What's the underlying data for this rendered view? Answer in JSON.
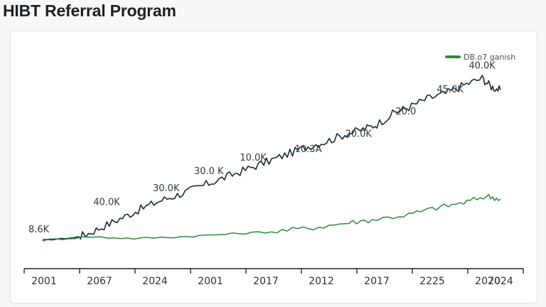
{
  "page": {
    "title": "HIBT Referral Program"
  },
  "chart_data": {
    "type": "line",
    "title": "HIBT Referral Program",
    "xlabel": "",
    "ylabel": "",
    "x_tick_labels": [
      "2001",
      "2067",
      "2024",
      "2001",
      "2017",
      "2012",
      "2017",
      "2225",
      "2070",
      "2024"
    ],
    "legend": {
      "position": "top-right",
      "entries": [
        {
          "label": "DB.o7 ganish",
          "color": "#2e8b3e"
        }
      ]
    },
    "grid": false,
    "ylim": [
      0,
      100
    ],
    "series": [
      {
        "color": "#1f2a36",
        "points": [
          [
            0.0,
            5.0
          ],
          [
            0.07,
            6.5
          ],
          [
            0.1,
            9.0
          ],
          [
            0.14,
            14.0
          ],
          [
            0.18,
            19.0
          ],
          [
            0.22,
            24.0
          ],
          [
            0.26,
            28.5
          ],
          [
            0.3,
            32.0
          ],
          [
            0.34,
            36.0
          ],
          [
            0.38,
            40.0
          ],
          [
            0.42,
            44.0
          ],
          [
            0.46,
            48.0
          ],
          [
            0.5,
            52.0
          ],
          [
            0.54,
            56.0
          ],
          [
            0.58,
            60.0
          ],
          [
            0.62,
            63.0
          ],
          [
            0.66,
            67.0
          ],
          [
            0.7,
            70.0
          ],
          [
            0.73,
            73.0
          ],
          [
            0.77,
            80.0
          ],
          [
            0.8,
            83.0
          ],
          [
            0.84,
            88.0
          ],
          [
            0.88,
            91.0
          ],
          [
            0.92,
            96.0
          ],
          [
            0.96,
            100.0
          ],
          [
            0.98,
            95.0
          ],
          [
            1.0,
            93.0
          ]
        ]
      },
      {
        "color": "#2e8b3e",
        "points": [
          [
            0.0,
            5.0
          ],
          [
            0.1,
            7.0
          ],
          [
            0.2,
            6.0
          ],
          [
            0.3,
            7.0
          ],
          [
            0.4,
            8.5
          ],
          [
            0.5,
            10.0
          ],
          [
            0.58,
            12.0
          ],
          [
            0.66,
            15.0
          ],
          [
            0.72,
            17.0
          ],
          [
            0.8,
            20.0
          ],
          [
            0.86,
            24.0
          ],
          [
            0.92,
            27.0
          ],
          [
            0.97,
            31.0
          ],
          [
            1.0,
            29.0
          ]
        ]
      }
    ],
    "annotations": [
      {
        "text": "8.6K",
        "x": 0.0,
        "y": 8.0
      },
      {
        "text": "40.0K",
        "x": 0.12,
        "y": 24.0
      },
      {
        "text": "30.0K",
        "x": 0.25,
        "y": 32.0
      },
      {
        "text": "30.0 K",
        "x": 0.34,
        "y": 42.0
      },
      {
        "text": "10.0K",
        "x": 0.44,
        "y": 50.0
      },
      {
        "text": "10.3A",
        "x": 0.56,
        "y": 55.0
      },
      {
        "text": "20.0K",
        "x": 0.67,
        "y": 64.0
      },
      {
        "text": "20.0",
        "x": 0.78,
        "y": 77.0
      },
      {
        "text": "45.0K",
        "x": 0.87,
        "y": 90.0
      },
      {
        "text": "40.0K",
        "x": 0.94,
        "y": 104.0
      }
    ]
  }
}
